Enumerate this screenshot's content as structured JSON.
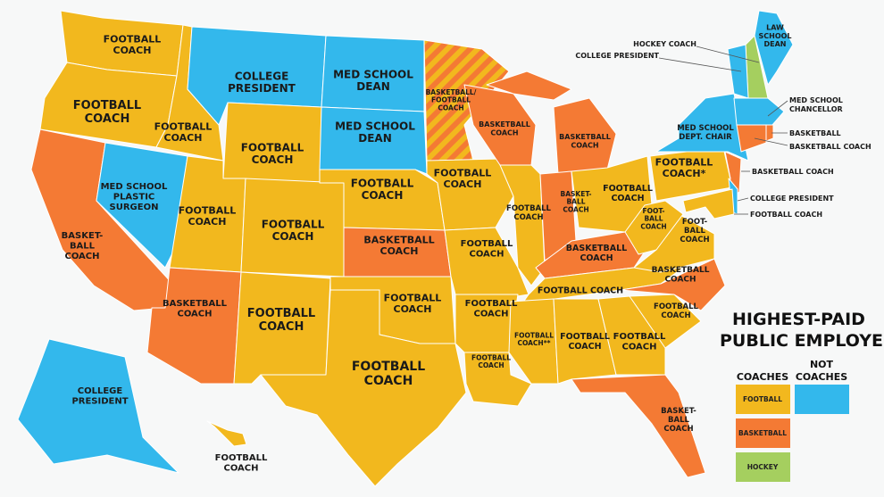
{
  "title": [
    "HIGHEST-PAID",
    "PUBLIC EMPLOYEES"
  ],
  "colors": {
    "football": "#f2b81e",
    "basketball": "#f47a34",
    "not_coach": "#33b8ec",
    "hockey": "#a5cf5f",
    "background": "#f7f8f8"
  },
  "legend": {
    "coaches_heading": "COACHES",
    "not_coaches_heading": [
      "NOT",
      "COACHES"
    ],
    "football": "FOOTBALL",
    "basketball": "BASKETBALL",
    "hockey": "HOCKEY"
  },
  "states": {
    "WA": {
      "label": [
        "FOOTBALL",
        "COACH"
      ],
      "category": "football"
    },
    "OR": {
      "label": [
        "FOOTBALL",
        "COACH"
      ],
      "category": "football"
    },
    "CA": {
      "label": [
        "BASKET-",
        "BALL",
        "COACH"
      ],
      "category": "basketball"
    },
    "NV": {
      "label": [
        "MED SCHOOL",
        "PLASTIC",
        "SURGEON"
      ],
      "category": "not_coach"
    },
    "ID": {
      "label": [
        "FOOTBALL",
        "COACH"
      ],
      "category": "football"
    },
    "MT": {
      "label": [
        "COLLEGE",
        "PRESIDENT"
      ],
      "category": "not_coach"
    },
    "WY": {
      "label": [
        "FOOTBALL",
        "COACH"
      ],
      "category": "football"
    },
    "UT": {
      "label": [
        "FOOTBALL",
        "COACH"
      ],
      "category": "football"
    },
    "CO": {
      "label": [
        "FOOTBALL",
        "COACH"
      ],
      "category": "football"
    },
    "AZ": {
      "label": [
        "BASKETBALL",
        "COACH"
      ],
      "category": "basketball"
    },
    "NM": {
      "label": [
        "FOOTBALL",
        "COACH"
      ],
      "category": "football"
    },
    "ND": {
      "label": [
        "MED SCHOOL",
        "DEAN"
      ],
      "category": "not_coach"
    },
    "SD": {
      "label": [
        "MED SCHOOL",
        "DEAN"
      ],
      "category": "not_coach"
    },
    "NE": {
      "label": [
        "FOOTBALL",
        "COACH"
      ],
      "category": "football"
    },
    "KS": {
      "label": [
        "BASKETBALL",
        "COACH"
      ],
      "category": "basketball"
    },
    "OK": {
      "label": [
        "FOOTBALL",
        "COACH"
      ],
      "category": "football"
    },
    "TX": {
      "label": [
        "FOOTBALL",
        "COACH"
      ],
      "category": "football"
    },
    "MN": {
      "label": [
        "BASKETBALL/",
        "FOOTBALL",
        "COACH"
      ],
      "category": "football_basketball"
    },
    "IA": {
      "label": [
        "FOOTBALL",
        "COACH"
      ],
      "category": "football"
    },
    "MO": {
      "label": [
        "FOOTBALL",
        "COACH"
      ],
      "category": "football"
    },
    "AR": {
      "label": [
        "FOOTBALL",
        "COACH"
      ],
      "category": "football"
    },
    "LA": {
      "label": [
        "FOOTBALL",
        "COACH"
      ],
      "category": "football"
    },
    "WI": {
      "label": [
        "BASKETBALL",
        "COACH"
      ],
      "category": "basketball"
    },
    "IL": {
      "label": [
        "FOOTBALL",
        "COACH"
      ],
      "category": "football"
    },
    "MI": {
      "label": [
        "BASKETBALL",
        "COACH"
      ],
      "category": "basketball"
    },
    "IN": {
      "label": [
        "BASKET-",
        "BALL",
        "COACH"
      ],
      "category": "basketball"
    },
    "OH": {
      "label": [
        "FOOTBALL",
        "COACH"
      ],
      "category": "football"
    },
    "KY": {
      "label": [
        "BASKETBALL",
        "COACH"
      ],
      "category": "basketball"
    },
    "TN": {
      "label": [
        "FOOTBALL COACH"
      ],
      "category": "football"
    },
    "MS": {
      "label": [
        "FOOTBALL",
        "COACH**"
      ],
      "category": "football"
    },
    "AL": {
      "label": [
        "FOOTBALL",
        "COACH"
      ],
      "category": "football"
    },
    "GA": {
      "label": [
        "FOOTBALL",
        "COACH"
      ],
      "category": "football"
    },
    "FL": {
      "label": [
        "BASKET-",
        "BALL",
        "COACH"
      ],
      "category": "basketball"
    },
    "SC": {
      "label": [
        "FOOTBALL",
        "COACH"
      ],
      "category": "football"
    },
    "NC": {
      "label": [
        "BASKETBALL",
        "COACH"
      ],
      "category": "basketball"
    },
    "VA": {
      "label": [
        "FOOT-",
        "BALL",
        "COACH"
      ],
      "category": "football"
    },
    "WV": {
      "label": [
        "FOOT-",
        "BALL",
        "COACH"
      ],
      "category": "football"
    },
    "PA": {
      "label": [
        "FOOTBALL",
        "COACH*"
      ],
      "category": "football"
    },
    "NY": {
      "label": [
        "MED SCHOOL",
        "DEPT. CHAIR"
      ],
      "category": "not_coach"
    },
    "ME": {
      "label": [
        "LAW",
        "SCHOOL",
        "DEAN"
      ],
      "category": "not_coach"
    },
    "AK": {
      "label": [
        "COLLEGE",
        "PRESIDENT"
      ],
      "category": "not_coach"
    },
    "HI": {
      "label": [
        "FOOTBALL",
        "COACH"
      ],
      "category": "football"
    },
    "NH": {
      "label": [
        "HOCKEY COACH"
      ],
      "category": "hockey"
    },
    "VT": {
      "label": [
        "COLLEGE PRESIDENT"
      ],
      "category": "not_coach"
    },
    "MA": {
      "label": [
        "MED SCHOOL",
        "CHANCELLOR"
      ],
      "category": "not_coach"
    },
    "RI": {
      "label": [
        "BASKETBALL"
      ],
      "category": "basketball"
    },
    "CT": {
      "label": [
        "BASKETBALL COACH"
      ],
      "category": "basketball"
    },
    "NJ": {
      "label": [
        "BASKETBALL COACH"
      ],
      "category": "basketball"
    },
    "DE": {
      "label": [
        "COLLEGE PRESIDENT"
      ],
      "category": "not_coach"
    },
    "MD": {
      "label": [
        "FOOTBALL COACH"
      ],
      "category": "football"
    }
  }
}
